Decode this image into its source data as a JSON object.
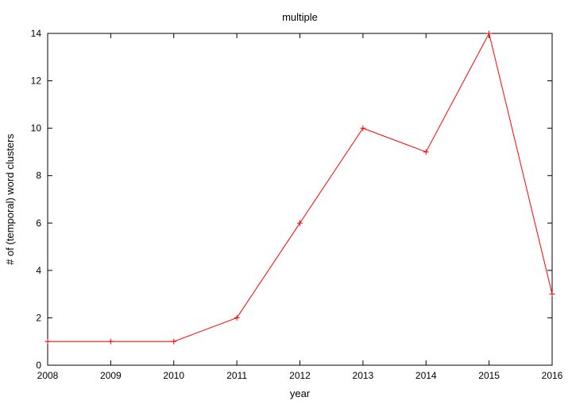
{
  "chart_data": {
    "type": "line",
    "title": "multiple",
    "xlabel": "year",
    "ylabel": "# of (temporal) word clusters",
    "x": [
      2008,
      2009,
      2010,
      2011,
      2012,
      2013,
      2014,
      2015,
      2016
    ],
    "series": [
      {
        "values": [
          1,
          1,
          1,
          2,
          6,
          10,
          9,
          14,
          3
        ],
        "color": "#ff0000",
        "marker": "plus"
      }
    ],
    "xlim": [
      2008,
      2016
    ],
    "ylim": [
      0,
      14
    ],
    "xticks": [
      "2008",
      "2009",
      "2010",
      "2011",
      "2012",
      "2013",
      "2014",
      "2015",
      "2016"
    ],
    "yticks": [
      "0",
      "2",
      "4",
      "6",
      "8",
      "10",
      "12",
      "14"
    ],
    "grid": false,
    "legend": "none"
  }
}
